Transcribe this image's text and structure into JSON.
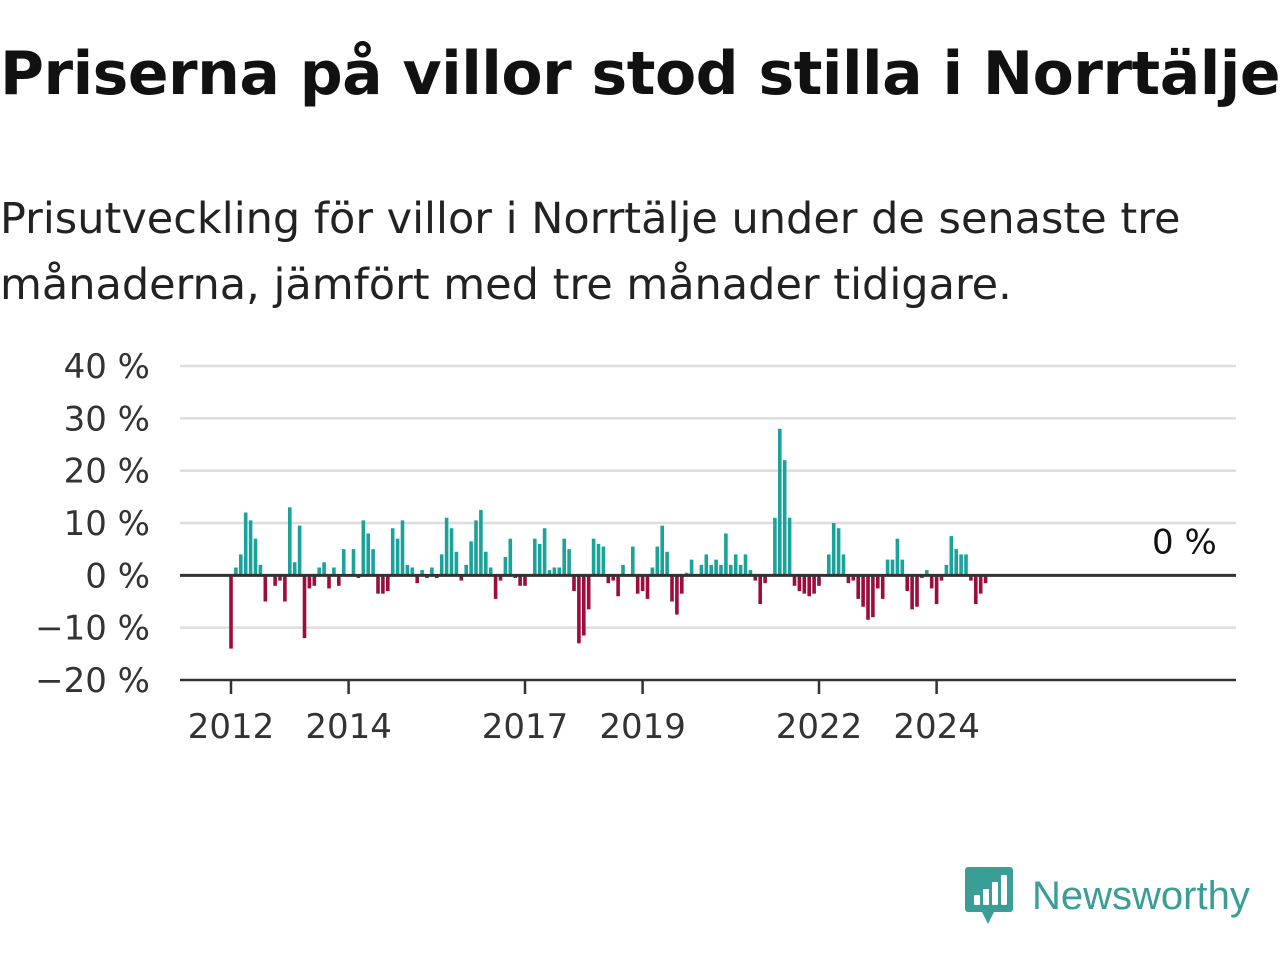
{
  "header": {
    "title": "Priserna på villor stod stilla i Norrtälje",
    "subtitle": "Prisutveckling för villor i Norrtälje under de senaste tre månaderna, jämfört med tre månader tidigare."
  },
  "brand": {
    "name": "Newsworthy",
    "icon": "newsworthy-logo-icon",
    "color": "#3a9e96"
  },
  "chart_data": {
    "type": "bar",
    "title": "Priserna på villor stod stilla i Norrtälje",
    "subtitle": "Prisutveckling för villor i Norrtälje under de senaste tre månaderna, jämfört med tre månader tidigare.",
    "xlabel": "",
    "ylabel": "",
    "ylim": [
      -20,
      40
    ],
    "y_ticks": [
      40,
      30,
      20,
      10,
      0,
      -10,
      -20
    ],
    "y_tick_labels": [
      "40 %",
      "30 %",
      "20 %",
      "10 %",
      "0 %",
      "−10 %",
      "−20 %"
    ],
    "x_ticks": [
      {
        "label": "2012",
        "index": 0
      },
      {
        "label": "2014",
        "index": 24
      },
      {
        "label": "2017",
        "index": 60
      },
      {
        "label": "2019",
        "index": 84
      },
      {
        "label": "2022",
        "index": 120
      },
      {
        "label": "2024",
        "index": 144
      }
    ],
    "colors": {
      "positive": "#1aa39a",
      "negative": "#9e0b3f",
      "grid": "#dddddd",
      "axis": "#333333"
    },
    "grid": true,
    "last_value_label": "0 %",
    "values": [
      -14,
      1.5,
      4,
      12,
      10.5,
      7,
      2,
      -5,
      0,
      -2,
      -1,
      -5,
      13,
      2.5,
      9.5,
      -12,
      -2.5,
      -2,
      1.5,
      2.5,
      -2.5,
      1.5,
      -2,
      5,
      0,
      5,
      -0.5,
      10.5,
      8,
      5,
      -3.5,
      -3.5,
      -3,
      9,
      7,
      10.5,
      2,
      1.5,
      -1.5,
      1,
      -0.5,
      1.5,
      -0.5,
      4,
      11,
      9,
      4.5,
      -1,
      2,
      6.5,
      10.5,
      12.5,
      4.5,
      1.5,
      -4.5,
      -1,
      3.5,
      7,
      -0.5,
      -2,
      -2,
      0,
      7,
      6,
      9,
      1,
      1.5,
      1.5,
      7,
      5,
      -3,
      -13,
      -11.5,
      -6.5,
      7,
      6,
      5.5,
      -1.5,
      -1,
      -4,
      2,
      0,
      5.5,
      -3.5,
      -3,
      -4.5,
      1.5,
      5.5,
      9.5,
      4.5,
      -5,
      -7.5,
      -3.5,
      0.5,
      3,
      0,
      2,
      4,
      2,
      3,
      2,
      8,
      2,
      4,
      2,
      4,
      1,
      -1,
      -5.5,
      -1.5,
      0,
      11,
      28,
      22,
      11,
      -2,
      -3,
      -3.5,
      -4,
      -3.5,
      -2,
      0,
      4,
      10,
      9,
      4,
      -1.5,
      -1,
      -4.5,
      -6,
      -8.5,
      -8,
      -2.5,
      -4.5,
      3,
      3,
      7,
      3,
      -3,
      -6.5,
      -6,
      -0.5,
      1,
      -2.5,
      -5.5,
      -1,
      2,
      7.5,
      5,
      4,
      4,
      -1,
      -5.5,
      -3.5,
      -1.5,
      0
    ]
  }
}
